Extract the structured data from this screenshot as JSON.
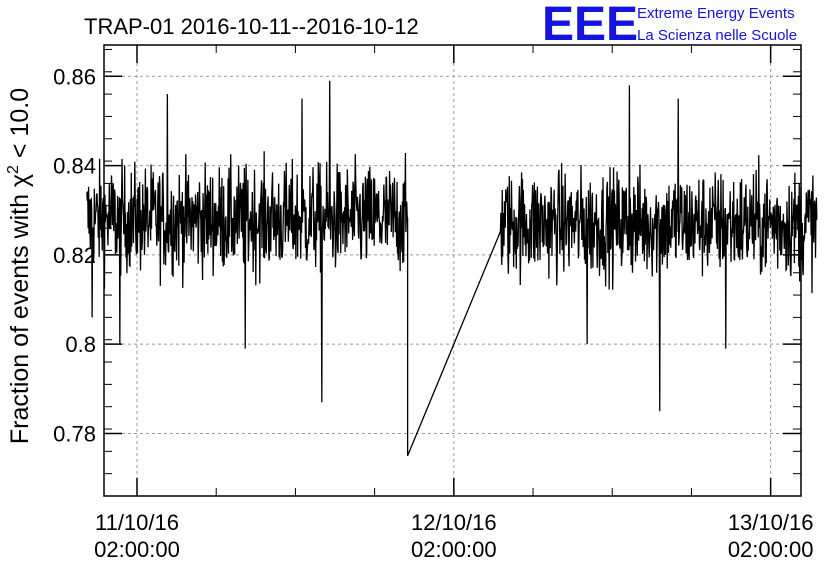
{
  "header": {
    "title": "TRAP-01 2016-10-11--2016-10-12",
    "logo": "EEE",
    "logo_line1": "Extreme Energy Events",
    "logo_line2": "La Scienza nelle Scuole",
    "logo_color": "#1414dc"
  },
  "chart_data": {
    "type": "line",
    "ylabel_prefix": "Fraction of events with ",
    "ylabel_chi": "χ",
    "ylabel_sup": "2",
    "ylabel_suffix": " < 10.0",
    "ylim": [
      0.766,
      0.867
    ],
    "y_ticks": [
      0.78,
      0.8,
      0.82,
      0.84,
      0.86
    ],
    "y_tick_labels": [
      "0.78",
      "0.8",
      "0.82",
      "0.84",
      "0.86"
    ],
    "xlim_hours": [
      -2.5,
      50.3
    ],
    "x_ticks": [
      {
        "date": "11/10/16",
        "time": "02:00:00",
        "hour": 0
      },
      {
        "date": "12/10/16",
        "time": "02:00:00",
        "hour": 24
      },
      {
        "date": "13/10/16",
        "time": "02:00:00",
        "hour": 48
      }
    ],
    "grid": true,
    "series": [
      {
        "color": "#000000",
        "segments": [
          {
            "start_hour": -3.8,
            "end_hour": 20.5,
            "mean": 0.828,
            "spread": 0.006,
            "spikes": [
              [
                -3.4,
                0.806
              ],
              [
                -1.3,
                0.8
              ],
              [
                8.2,
                0.799
              ],
              [
                14.0,
                0.787
              ],
              [
                2.3,
                0.856
              ],
              [
                14.6,
                0.859
              ],
              [
                12.5,
                0.855
              ]
            ]
          },
          {
            "start_hour": 20.5,
            "end_hour": 20.5,
            "value": 0.775
          },
          {
            "start_hour": 27.5,
            "end_hour": 51.5,
            "mean": 0.827,
            "spread": 0.006,
            "spikes": [
              [
                39.6,
                0.785
              ],
              [
                34.1,
                0.8
              ],
              [
                44.6,
                0.799
              ],
              [
                37.3,
                0.858
              ],
              [
                41.0,
                0.855
              ]
            ]
          }
        ]
      }
    ]
  }
}
